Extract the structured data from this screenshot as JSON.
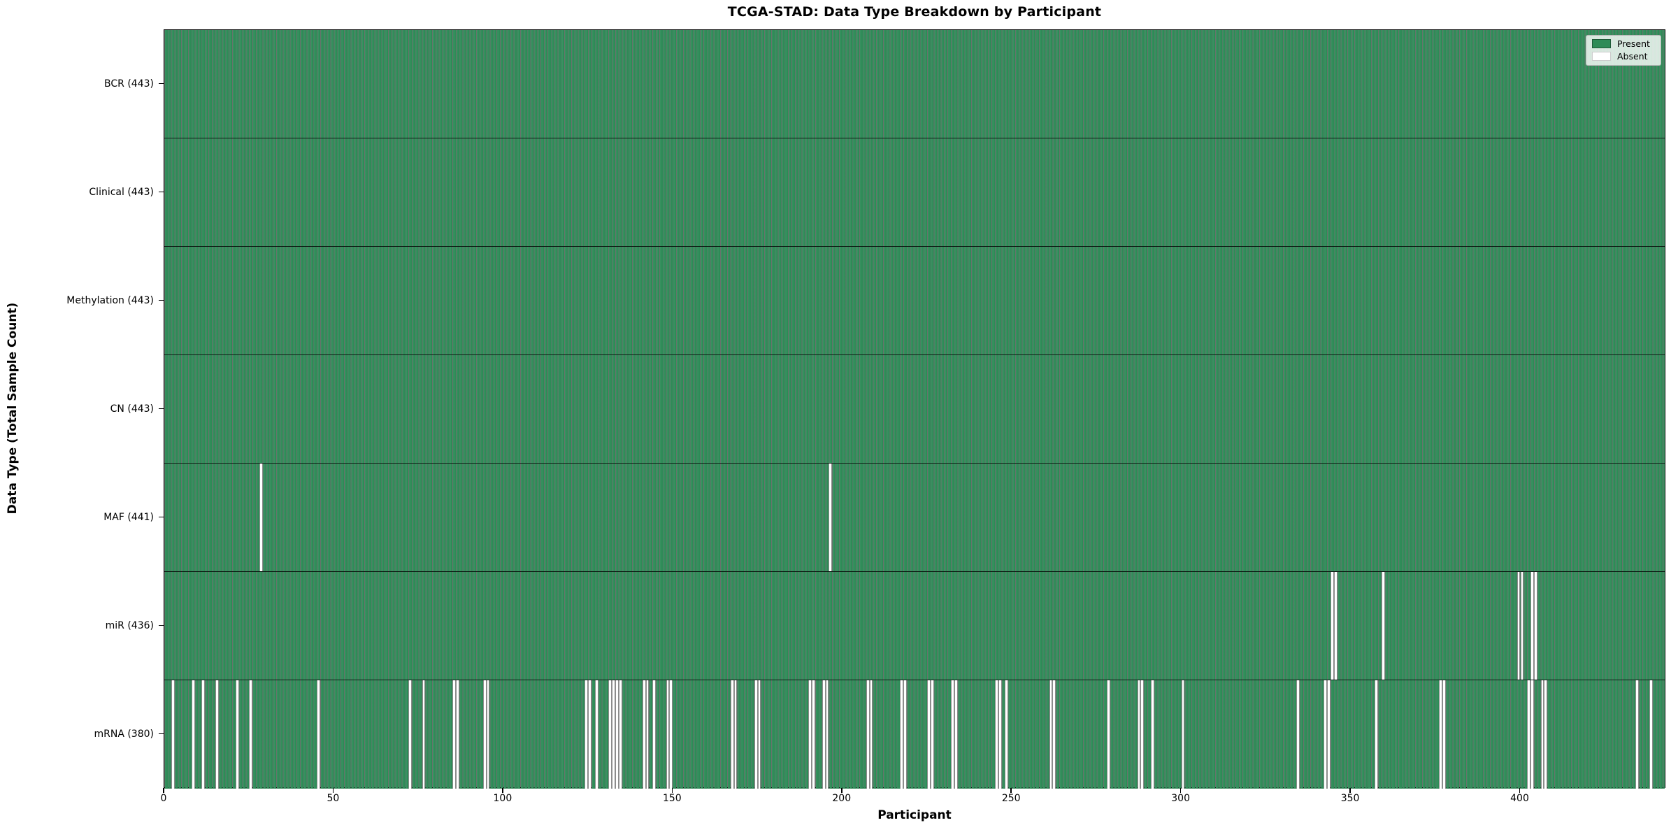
{
  "chart_data": {
    "type": "heatmap",
    "title": "TCGA-STAD: Data Type Breakdown by Participant",
    "xlabel": "Participant",
    "ylabel": "Data Type (Total Sample Count)",
    "x_range": [
      0,
      443
    ],
    "x_ticks": [
      0,
      50,
      100,
      150,
      200,
      250,
      300,
      350,
      400
    ],
    "n_participants": 443,
    "grid": false,
    "legend_position": "upper right",
    "legend": [
      {
        "label": "Present",
        "color": "#2e8b57"
      },
      {
        "label": "Absent",
        "color": "#ffffff"
      }
    ],
    "colors": {
      "present": "#2e8b57",
      "absent": "#ffffff",
      "bar_edge": "#14301f",
      "spine": "#000000",
      "background": "#ffffff"
    },
    "rows": [
      {
        "name": "BCR",
        "label": "BCR (443)",
        "total": 443,
        "absent_participants": []
      },
      {
        "name": "Clinical",
        "label": "Clinical (443)",
        "total": 443,
        "absent_participants": []
      },
      {
        "name": "Methylation",
        "label": "Methylation (443)",
        "total": 443,
        "absent_participants": []
      },
      {
        "name": "CN",
        "label": "CN (443)",
        "total": 443,
        "absent_participants": []
      },
      {
        "name": "MAF",
        "label": "MAF (441)",
        "total": 441,
        "absent_participants": [
          28,
          196
        ]
      },
      {
        "name": "miR",
        "label": "miR (436)",
        "total": 436,
        "absent_participants": [
          344,
          345,
          359,
          399,
          400,
          403,
          404
        ]
      },
      {
        "name": "mRNA",
        "label": "mRNA (380)",
        "total": 380,
        "absent_participants": [
          2,
          8,
          11,
          15,
          21,
          25,
          45,
          72,
          76,
          85,
          86,
          94,
          95,
          124,
          125,
          127,
          131,
          132,
          133,
          134,
          141,
          142,
          144,
          148,
          149,
          167,
          168,
          174,
          175,
          190,
          191,
          194,
          195,
          207,
          208,
          217,
          218,
          225,
          226,
          232,
          233,
          245,
          246,
          248,
          261,
          262,
          278,
          287,
          288,
          291,
          300,
          334,
          342,
          343,
          357,
          376,
          377,
          402,
          403,
          406,
          407,
          434,
          438
        ]
      }
    ]
  }
}
